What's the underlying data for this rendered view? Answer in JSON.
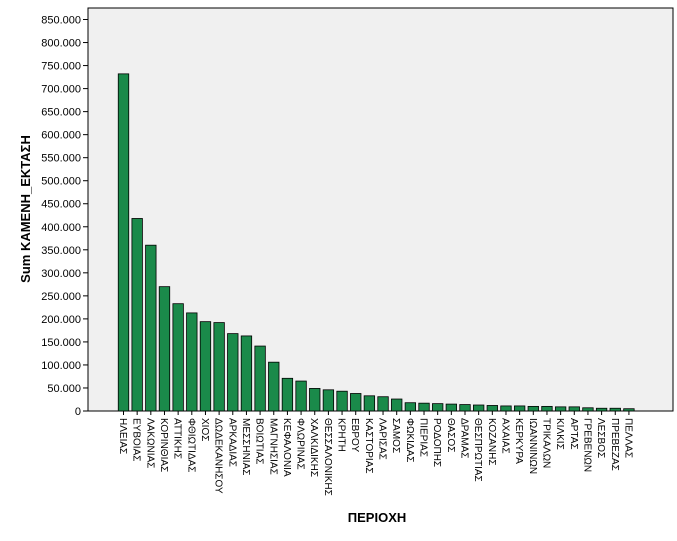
{
  "chart_data": {
    "type": "bar",
    "title": "",
    "xlabel": "ΠΕΡΙΟΧΗ",
    "ylabel": "Sum ΚΑΜΕΝΗ_ΕΚΤΑΣΗ",
    "ylim": [
      0,
      875000
    ],
    "yticks": [
      0,
      50000,
      100000,
      150000,
      200000,
      250000,
      300000,
      350000,
      400000,
      450000,
      500000,
      550000,
      600000,
      650000,
      700000,
      750000,
      800000,
      850000
    ],
    "ytick_labels": [
      "0",
      "50.000",
      "100.000",
      "150.000",
      "200.000",
      "250.000",
      "300.000",
      "350.000",
      "400.000",
      "450.000",
      "500.000",
      "550.000",
      "600.000",
      "650.000",
      "700.000",
      "750.000",
      "800.000",
      "850.000"
    ],
    "grid": false,
    "legend": "none",
    "bar_color": "#1a8a4a",
    "categories": [
      "ΗΛΕΙΑΣ",
      "ΕΥΒΟΙΑΣ",
      "ΛΑΚΩΝΙΑΣ",
      "ΚΟΡΙΝΘΙΑΣ",
      "ΑΤΤΙΚΗΣ",
      "ΦΘΙΩΤΙΔΑΣ",
      "ΧΙΟΣ",
      "ΔΩΔΕΚΑΝΗΣΟΥ",
      "ΑΡΚΑΔΙΑΣ",
      "ΜΕΣΣΗΝΙΑΣ",
      "ΒΟΙΩΤΙΑΣ",
      "ΜΑΓΝΗΣΙΑΣ",
      "ΚΕΦΑΛΟΝΙΑ",
      "ΦΛΩΡΙΝΑΣ",
      "ΧΑΛΚΙΔΙΚΗΣ",
      "ΘΕΣΣΑΛΟΝΙΚΗΣ",
      "ΚΡΗΤΗ",
      "ΕΒΡΟΥ",
      "ΚΑΣΤΟΡΙΑΣ",
      "ΛΑΡΙΣΑΣ",
      "ΣΑΜΟΣ",
      "ΦΩΚΙΔΑΣ",
      "ΠΙΕΡΙΑΣ",
      "ΡΟΔΟΠΗΣ",
      "ΘΑΣΟΣ",
      "ΔΡΑΜΑΣ",
      "ΘΕΣΠΡΩΤΙΑΣ",
      "ΚΟΖΑΝΗΣ",
      "ΑΧΑΙΑΣ",
      "ΚΕΡΚΥΡΑ",
      "ΙΩΑΝΝΙΝΩΝ",
      "ΤΡΙΚΑΛΩΝ",
      "ΚΙΛΚΙΣ",
      "ΑΡΤΑΣ",
      "ΓΡΕΒΕΝΩΝ",
      "ΛΕΣΒΟΣ",
      "ΠΡΕΒΕΖΑΣ",
      "ΠΕΛΛΑΣ"
    ],
    "values": [
      732000,
      418000,
      360000,
      270000,
      233000,
      213000,
      194000,
      192000,
      168000,
      163000,
      141000,
      106000,
      71000,
      65000,
      49000,
      46000,
      43000,
      38000,
      33000,
      31000,
      26000,
      18000,
      17000,
      16000,
      15000,
      14000,
      13000,
      12000,
      11000,
      11000,
      10000,
      10000,
      9000,
      9000,
      7000,
      6000,
      6000,
      5000
    ]
  }
}
